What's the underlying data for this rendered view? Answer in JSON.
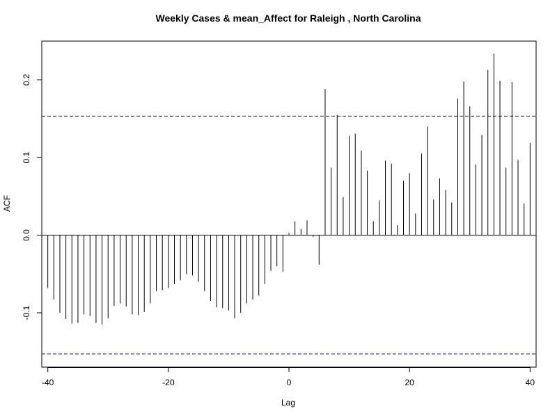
{
  "chart_data": {
    "type": "bar",
    "title": "Weekly Cases & mean_Affect for Raleigh , North Carolina",
    "xlabel": "Lag",
    "ylabel": "ACF",
    "xlim": [
      -41,
      41
    ],
    "ylim": [
      -0.17,
      0.25
    ],
    "x_ticks": [
      -40,
      -20,
      0,
      20,
      40
    ],
    "y_ticks": [
      -0.1,
      0.0,
      0.1,
      0.2
    ],
    "x_tick_labels": [
      "-40",
      "-20",
      "0",
      "20",
      "40"
    ],
    "y_tick_labels": [
      "-0.1",
      "0.0",
      "0.1",
      "0.2"
    ],
    "confidence_bounds": [
      0.153,
      -0.153
    ],
    "lags": [
      -40,
      -39,
      -38,
      -37,
      -36,
      -35,
      -34,
      -33,
      -32,
      -31,
      -30,
      -29,
      -28,
      -27,
      -26,
      -25,
      -24,
      -23,
      -22,
      -21,
      -20,
      -19,
      -18,
      -17,
      -16,
      -15,
      -14,
      -13,
      -12,
      -11,
      -10,
      -9,
      -8,
      -7,
      -6,
      -5,
      -4,
      -3,
      -2,
      -1,
      0,
      1,
      2,
      3,
      4,
      5,
      6,
      7,
      8,
      9,
      10,
      11,
      12,
      13,
      14,
      15,
      16,
      17,
      18,
      19,
      20,
      21,
      22,
      23,
      24,
      25,
      26,
      27,
      28,
      29,
      30,
      31,
      32,
      33,
      34,
      35,
      36,
      37,
      38,
      39,
      40
    ],
    "values": [
      -0.068,
      -0.083,
      -0.1,
      -0.108,
      -0.114,
      -0.113,
      -0.102,
      -0.104,
      -0.113,
      -0.115,
      -0.107,
      -0.091,
      -0.088,
      -0.092,
      -0.102,
      -0.103,
      -0.099,
      -0.088,
      -0.072,
      -0.071,
      -0.068,
      -0.063,
      -0.058,
      -0.05,
      -0.052,
      -0.06,
      -0.072,
      -0.085,
      -0.093,
      -0.094,
      -0.097,
      -0.107,
      -0.1,
      -0.088,
      -0.083,
      -0.078,
      -0.063,
      -0.046,
      -0.04,
      -0.047,
      0.003,
      0.018,
      0.008,
      0.019,
      -0.002,
      -0.038,
      0.188,
      0.087,
      0.155,
      0.049,
      0.128,
      0.131,
      0.109,
      0.083,
      0.018,
      0.045,
      0.096,
      0.092,
      0.013,
      0.07,
      0.08,
      0.028,
      0.105,
      0.14,
      0.046,
      0.073,
      0.058,
      0.042,
      0.176,
      0.198,
      0.166,
      0.091,
      0.129,
      0.213,
      0.234,
      0.199,
      0.087,
      0.197,
      0.097,
      0.041,
      0.119
    ]
  }
}
